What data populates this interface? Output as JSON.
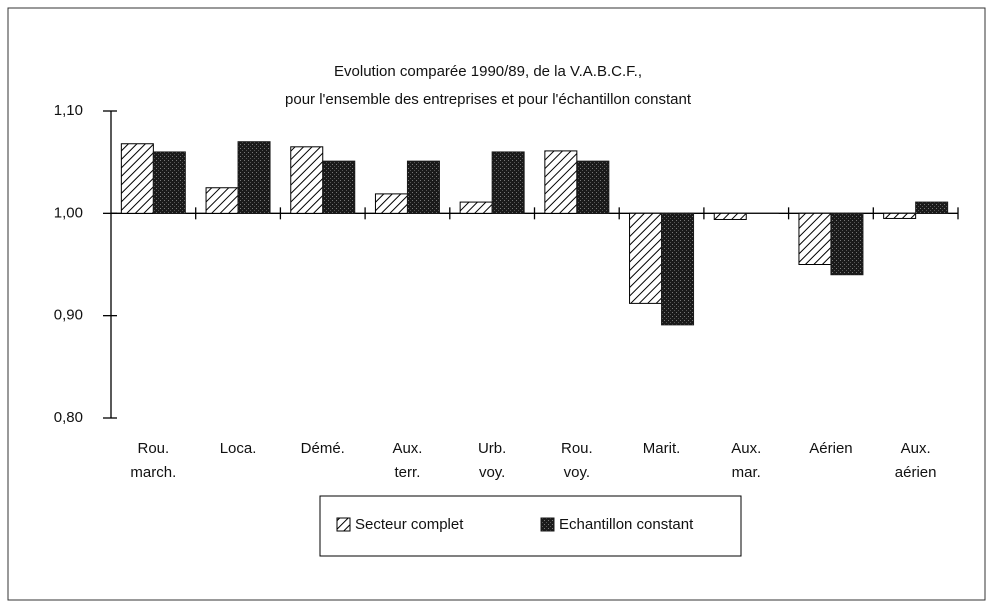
{
  "chart_data": {
    "type": "bar",
    "title": [
      "Evolution comparée 1990/89, de la V.A.B.C.F.,",
      "pour l'ensemble des entreprises et pour l'échantillon constant"
    ],
    "categories": [
      "Rou.\nmarch.",
      "Loca.",
      "Démé.",
      "Aux.\nterr.",
      "Urb.\nvoy.",
      "Rou.\nvoy.",
      "Marit.",
      "Aux.\nmar.",
      "Aérien",
      "Aux.\naérien"
    ],
    "series": [
      {
        "name": "Secteur complet",
        "color": "#000000",
        "pattern": "hatch",
        "values": [
          1.068,
          1.025,
          1.065,
          1.019,
          1.011,
          1.061,
          0.912,
          0.994,
          0.95,
          0.995
        ]
      },
      {
        "name": "Echantillon constant",
        "color": "#1a1a1a",
        "pattern": "stipple",
        "values": [
          1.06,
          1.07,
          1.051,
          1.051,
          1.06,
          1.051,
          0.891,
          1.0,
          0.94,
          1.011
        ]
      }
    ],
    "ylim": [
      0.8,
      1.1
    ],
    "yticks": [
      {
        "value": 0.8,
        "label": "0,80"
      },
      {
        "value": 0.9,
        "label": "0,90"
      },
      {
        "value": 1.0,
        "label": "1,00"
      },
      {
        "value": 1.1,
        "label": "1,10"
      }
    ],
    "bar_origin": 1.0,
    "legend": "bottom"
  }
}
